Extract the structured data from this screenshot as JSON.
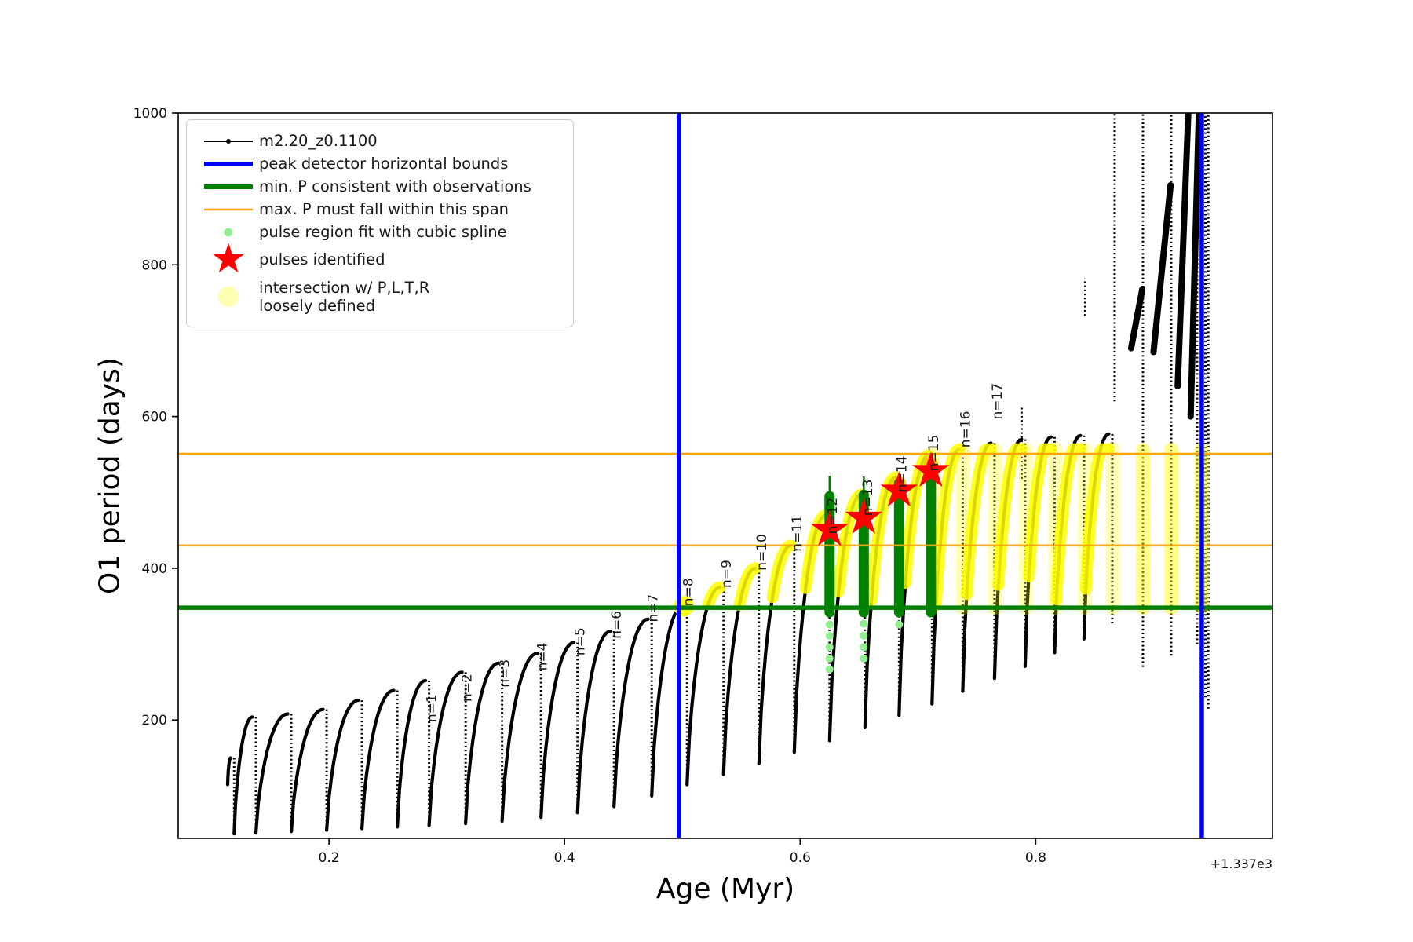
{
  "axes": {
    "xlabel": "Age (Myr)",
    "ylabel": "O1 period (days)",
    "x_offset_label": "+1.337e3"
  },
  "legend": {
    "items": [
      {
        "label": "m2.20_z0.1100",
        "marker": "black-line-dot"
      },
      {
        "label": "peak detector horizontal bounds",
        "marker": "blue-line"
      },
      {
        "label": "min. P consistent with observations",
        "marker": "green-line"
      },
      {
        "label": "max. P must fall within this span",
        "marker": "orange-line"
      },
      {
        "label": "pulse region fit with cubic spline",
        "marker": "lightgreen-dot"
      },
      {
        "label": "pulses identified",
        "marker": "red-star"
      },
      {
        "label": "intersection w/ P,L,T,R",
        "label2": "loosely defined",
        "marker": "paleyellow-dot"
      }
    ]
  },
  "chart_data": {
    "type": "scatter",
    "series_label": "m2.20_z0.1100",
    "xlabel": "Age (Myr)",
    "ylabel": "O1 period (days)",
    "x_offset": "+1.337e3",
    "xlim": [
      0.072,
      1.001
    ],
    "ylim": [
      44,
      1000
    ],
    "xticks": [
      0.2,
      0.4,
      0.6,
      0.8
    ],
    "yticks": [
      200,
      400,
      600,
      800,
      1000
    ],
    "x_start": 0.114,
    "colors": {
      "curve": "#000000",
      "peak_bounds": "#0000ff",
      "min_p": "#008000",
      "max_p": "#ffa500",
      "spline_fit": "#008000",
      "spline_dots": "#90ee90",
      "pulses": "#ff0000",
      "intersection": "#ffff00"
    },
    "blue_vlines": [
      0.497,
      0.941
    ],
    "green_hline": 348,
    "orange_hlines": [
      430,
      551
    ],
    "arches": [
      [
        0.1165,
        150
      ],
      [
        0.135,
        204
      ],
      [
        0.165,
        208
      ],
      [
        0.195,
        214
      ],
      [
        0.225,
        226
      ],
      [
        0.255,
        239
      ],
      [
        0.282,
        252
      ],
      [
        0.313,
        263
      ],
      [
        0.344,
        275
      ],
      [
        0.377,
        288
      ],
      [
        0.408,
        302
      ],
      [
        0.439,
        317
      ],
      [
        0.471,
        333
      ],
      [
        0.501,
        352
      ],
      [
        0.532,
        375
      ],
      [
        0.562,
        400
      ],
      [
        0.592,
        430
      ],
      [
        0.622,
        470
      ],
      [
        0.652,
        497
      ],
      [
        0.681,
        520
      ],
      [
        0.709,
        549
      ],
      [
        0.735,
        557
      ],
      [
        0.762,
        565
      ],
      [
        0.788,
        570
      ],
      [
        0.813,
        573
      ],
      [
        0.838,
        575
      ],
      [
        0.862,
        577
      ]
    ],
    "trough_anchors": [
      [
        0.114,
        115
      ],
      [
        0.119,
        50
      ],
      [
        0.2,
        55
      ],
      [
        0.3,
        62
      ],
      [
        0.35,
        67
      ],
      [
        0.4,
        75
      ],
      [
        0.45,
        88
      ],
      [
        0.5,
        113
      ],
      [
        0.53,
        126
      ],
      [
        0.56,
        140
      ],
      [
        0.59,
        155
      ],
      [
        0.62,
        170
      ],
      [
        0.65,
        187
      ],
      [
        0.68,
        204
      ],
      [
        0.71,
        220
      ],
      [
        0.735,
        236
      ],
      [
        0.762,
        253
      ],
      [
        0.79,
        270
      ],
      [
        0.815,
        288
      ],
      [
        0.84,
        306
      ],
      [
        0.862,
        325
      ],
      [
        0.885,
        343
      ],
      [
        0.91,
        360
      ],
      [
        0.947,
        375
      ]
    ],
    "tracks": [
      [
        0.867,
        620,
        1000
      ],
      [
        0.891,
        270,
        1000
      ],
      [
        0.915,
        285,
        1000
      ],
      [
        0.937,
        300,
        1000
      ],
      [
        0.9405,
        260,
        1000
      ],
      [
        0.944,
        230,
        1000
      ],
      [
        0.9465,
        215,
        1000
      ],
      [
        0.842,
        733,
        782
      ],
      [
        0.788,
        518,
        613
      ]
    ],
    "streaks": [
      [
        0.881,
        690,
        0.8905,
        768
      ],
      [
        0.9,
        685,
        0.9145,
        905
      ],
      [
        0.9205,
        640,
        0.9295,
        1000
      ],
      [
        0.9315,
        600,
        0.9385,
        1000
      ]
    ],
    "yellow_arcs_min": 348,
    "yellow_arcs_cap": 557,
    "yellow_blob": [
      0.501,
      350
    ],
    "yellow_columns": [
      [
        0.7125,
        348,
        552,
        0.3
      ],
      [
        0.7385,
        348,
        554,
        0.3
      ],
      [
        0.7655,
        348,
        556,
        0.3
      ],
      [
        0.7915,
        348,
        557,
        0.28
      ],
      [
        0.8165,
        348,
        557,
        0.28
      ],
      [
        0.8415,
        348,
        557,
        0.28
      ],
      [
        0.8655,
        348,
        557,
        0.28
      ],
      [
        0.891,
        348,
        556,
        0.45
      ],
      [
        0.915,
        348,
        556,
        0.45
      ],
      [
        0.941,
        348,
        556,
        0.5
      ]
    ],
    "green_columns": [
      {
        "x": 0.625,
        "lo": 342,
        "hi": 495,
        "tip": 522
      },
      {
        "x": 0.654,
        "lo": 342,
        "hi": 497,
        "tip": 521
      },
      {
        "x": 0.684,
        "lo": 342,
        "hi": 512
      },
      {
        "x": 0.711,
        "lo": 342,
        "hi": 530
      }
    ],
    "green_dots": [
      {
        "x": 0.625,
        "p": [
          267,
          281,
          296,
          311,
          326
        ]
      },
      {
        "x": 0.654,
        "p": [
          281,
          296,
          311,
          327
        ]
      },
      {
        "x": 0.684,
        "p": [
          326
        ]
      }
    ],
    "gold_dots": [
      [
        0.684,
        512
      ],
      [
        0.711,
        538
      ]
    ],
    "pulses": [
      [
        0.625,
        452
      ],
      [
        0.654,
        468
      ],
      [
        0.684,
        504
      ],
      [
        0.711,
        530
      ]
    ],
    "pulse_labels": [
      {
        "t": "n=1",
        "x": 0.291,
        "p": 197
      },
      {
        "t": "n=2",
        "x": 0.321,
        "p": 224
      },
      {
        "t": "n=3",
        "x": 0.353,
        "p": 243
      },
      {
        "t": "n=4",
        "x": 0.385,
        "p": 265
      },
      {
        "t": "n=5",
        "x": 0.417,
        "p": 285
      },
      {
        "t": "n=6",
        "x": 0.448,
        "p": 307
      },
      {
        "t": "n=7",
        "x": 0.479,
        "p": 329
      },
      {
        "t": "n=8",
        "x": 0.509,
        "p": 350
      },
      {
        "t": "n=9",
        "x": 0.541,
        "p": 374
      },
      {
        "t": "n=10",
        "x": 0.571,
        "p": 397
      },
      {
        "t": "n=11",
        "x": 0.601,
        "p": 422
      },
      {
        "t": "n=12",
        "x": 0.631,
        "p": 445
      },
      {
        "t": "n=13",
        "x": 0.661,
        "p": 469
      },
      {
        "t": "n=14",
        "x": 0.69,
        "p": 500
      },
      {
        "t": "n=15",
        "x": 0.717,
        "p": 528
      },
      {
        "t": "n=16",
        "x": 0.744,
        "p": 559
      },
      {
        "t": "n=17",
        "x": 0.771,
        "p": 596
      }
    ]
  }
}
